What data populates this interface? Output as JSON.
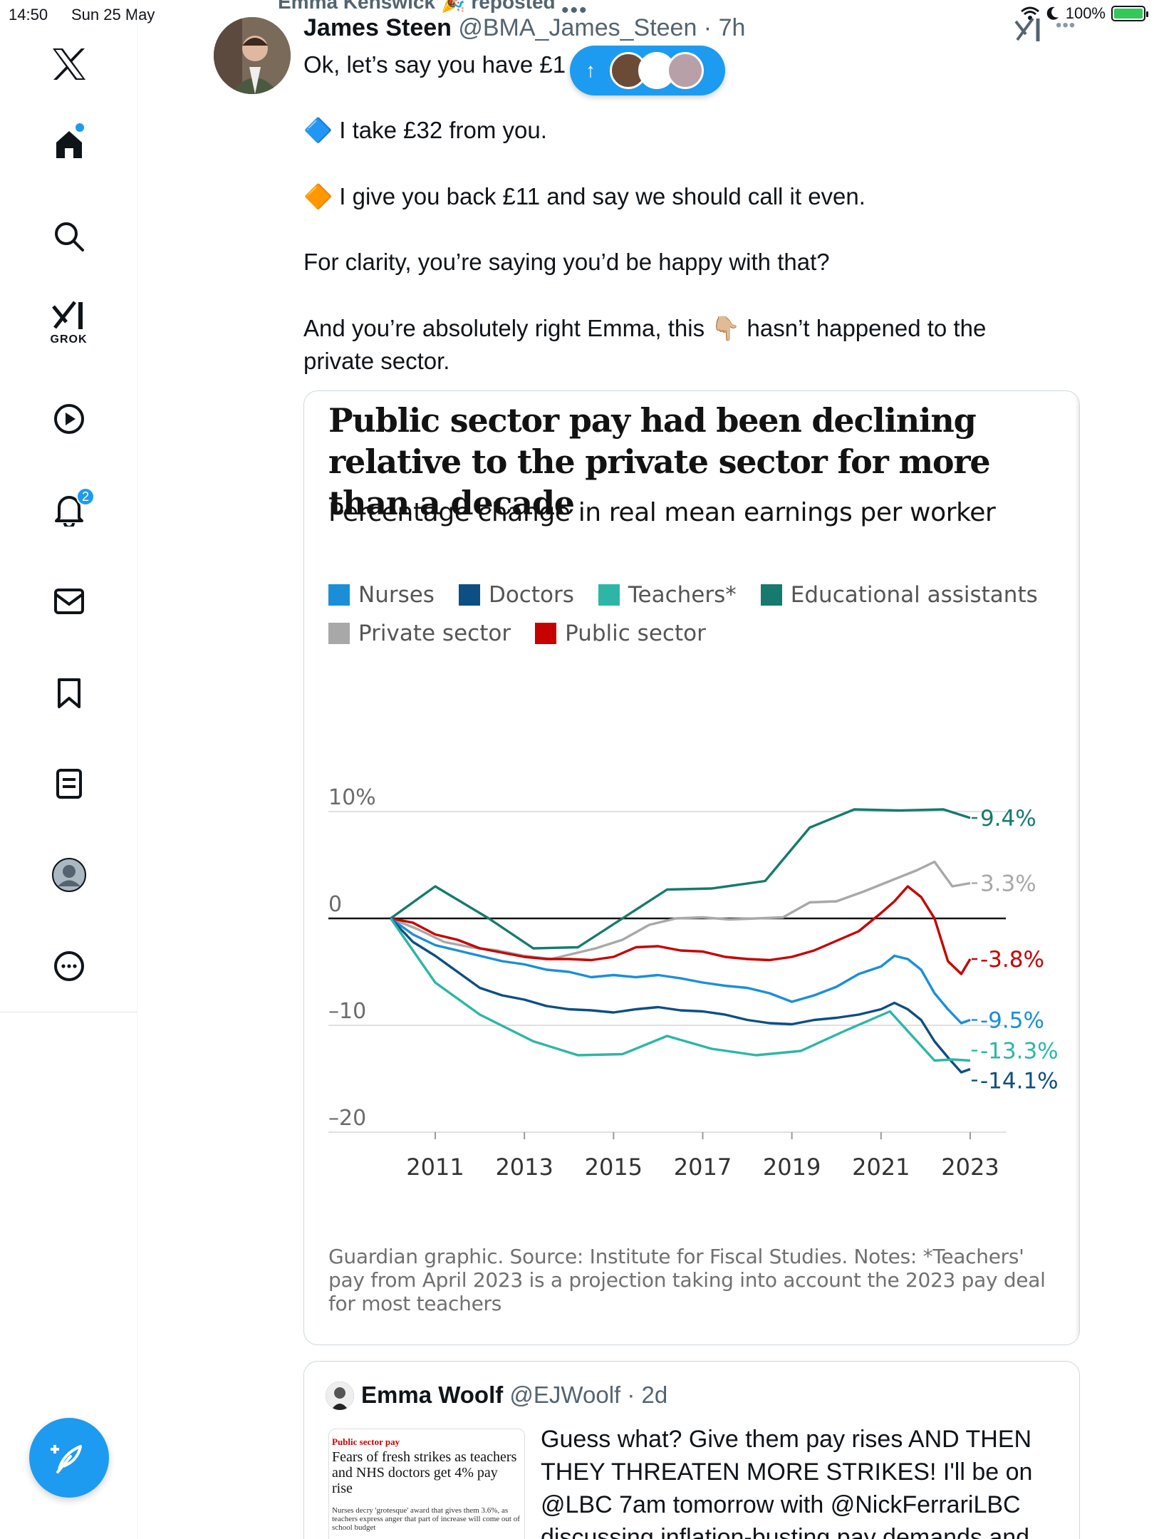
{
  "status": {
    "time": "14:50",
    "date": "Sun 25 May",
    "battery": "100%"
  },
  "sidebar": {
    "notification_count": "2",
    "grok_label": "GROK"
  },
  "tweet": {
    "repost_line": "Emma Kenswick 🎉 reposted",
    "author_name": "James Steen",
    "author_meta": "@BMA_James_Steen · 7h",
    "line1": "Ok, let’s say you have £1",
    "line2": "🔷 I take £32 from you.",
    "line3": "🔶 I give you back £11 and say we should call it even.",
    "line4": "For clarity, you’re saying you’d be happy with that?",
    "line5": "And you’re absolutely right Emma, this 👇🏼 hasn’t happened to the private sector.",
    "pill_arrow": "↑"
  },
  "chart_data": {
    "type": "line",
    "title": "Public sector pay had been declining relative to the private sector for more than a decade",
    "subtitle": "Percentage change in real mean earnings per worker",
    "notes": "Guardian graphic. Source: Institute for Fiscal Studies. Notes: *Teachers' pay from April 2023 is a projection taking into account the 2023 pay deal for most teachers",
    "ylim": [
      -20,
      10
    ],
    "xlim": [
      2009.5,
      2023.2
    ],
    "y_ticks": [
      {
        "v": 10,
        "label": "10%"
      },
      {
        "v": 0,
        "label": "0"
      },
      {
        "v": -10,
        "label": "–10"
      },
      {
        "v": -20,
        "label": "–20"
      }
    ],
    "x_ticks": [
      "2011",
      "2013",
      "2015",
      "2017",
      "2019",
      "2021",
      "2023"
    ],
    "x_tick_values": [
      2011,
      2013,
      2015,
      2017,
      2019,
      2021,
      2023
    ],
    "legend": [
      {
        "name": "Nurses",
        "color": "#1a8fd8"
      },
      {
        "name": "Doctors",
        "color": "#0d4f82"
      },
      {
        "name": "Teachers*",
        "color": "#2db6a6"
      },
      {
        "name": "Educational assistants",
        "color": "#167a6e"
      },
      {
        "name": "Private sector",
        "color": "#a8a8a8"
      },
      {
        "name": "Public sector",
        "color": "#c70000"
      }
    ],
    "series": [
      {
        "name": "Educational assistants",
        "color": "#167a6e",
        "end_label": "9.4%",
        "x": [
          2010.0,
          2011.0,
          2012.2,
          2013.2,
          2014.2,
          2015.2,
          2016.2,
          2017.2,
          2018.4,
          2019.4,
          2020.4,
          2021.4,
          2022.4,
          2023.0
        ],
        "y": [
          0.0,
          3.0,
          0.0,
          -2.8,
          -2.7,
          0.0,
          2.7,
          2.8,
          3.5,
          8.5,
          10.2,
          10.1,
          10.2,
          9.4
        ]
      },
      {
        "name": "Private sector",
        "color": "#a8a8a8",
        "end_label": "3.3%",
        "x": [
          2010.0,
          2010.6,
          2011.2,
          2011.8,
          2012.4,
          2013.0,
          2013.6,
          2014.0,
          2014.6,
          2015.2,
          2015.8,
          2016.4,
          2017.0,
          2017.6,
          2018.2,
          2018.8,
          2019.4,
          2020.0,
          2020.6,
          2021.2,
          2021.8,
          2022.2,
          2022.6,
          2023.0
        ],
        "y": [
          0.0,
          -1.0,
          -2.2,
          -2.7,
          -3.0,
          -3.5,
          -3.8,
          -3.4,
          -2.8,
          -2.0,
          -0.6,
          0.0,
          0.1,
          -0.1,
          0.0,
          0.1,
          1.5,
          1.6,
          2.5,
          3.5,
          4.5,
          5.3,
          3.0,
          3.3
        ]
      },
      {
        "name": "Public sector",
        "color": "#c70000",
        "end_label": "-3.8%",
        "x": [
          2010.0,
          2010.5,
          2011.0,
          2011.5,
          2012.0,
          2012.5,
          2013.0,
          2013.5,
          2014.0,
          2014.5,
          2015.0,
          2015.5,
          2016.0,
          2016.5,
          2017.0,
          2017.5,
          2018.0,
          2018.5,
          2019.0,
          2019.5,
          2020.0,
          2020.5,
          2021.0,
          2021.3,
          2021.6,
          2021.9,
          2022.2,
          2022.5,
          2022.8,
          2023.0
        ],
        "y": [
          0.0,
          -0.4,
          -1.5,
          -2.0,
          -2.8,
          -3.2,
          -3.6,
          -3.8,
          -3.8,
          -3.9,
          -3.6,
          -2.7,
          -2.6,
          -3.0,
          -3.1,
          -3.6,
          -3.8,
          -3.9,
          -3.6,
          -3.0,
          -2.1,
          -1.2,
          0.5,
          1.6,
          3.0,
          2.0,
          0.0,
          -4.0,
          -5.2,
          -3.8
        ]
      },
      {
        "name": "Nurses",
        "color": "#1a8fd8",
        "end_label": "-9.5%",
        "x": [
          2010.0,
          2010.5,
          2011.0,
          2011.5,
          2012.0,
          2012.5,
          2013.0,
          2013.5,
          2014.0,
          2014.5,
          2015.0,
          2015.5,
          2016.0,
          2016.5,
          2017.0,
          2017.5,
          2018.0,
          2018.5,
          2019.0,
          2019.5,
          2020.0,
          2020.5,
          2021.0,
          2021.3,
          2021.6,
          2021.9,
          2022.2,
          2022.5,
          2022.8,
          2023.0
        ],
        "y": [
          0.0,
          -1.5,
          -2.5,
          -3.0,
          -3.5,
          -4.0,
          -4.3,
          -4.8,
          -5.0,
          -5.5,
          -5.3,
          -5.5,
          -5.3,
          -5.6,
          -6.0,
          -6.3,
          -6.5,
          -7.0,
          -7.8,
          -7.2,
          -6.4,
          -5.2,
          -4.5,
          -3.5,
          -3.8,
          -4.8,
          -7.0,
          -8.5,
          -9.8,
          -9.5
        ]
      },
      {
        "name": "Doctors",
        "color": "#0d4f82",
        "end_label": "-14.1%",
        "x": [
          2010.0,
          2010.5,
          2011.0,
          2011.5,
          2012.0,
          2012.5,
          2013.0,
          2013.5,
          2014.0,
          2014.5,
          2015.0,
          2015.5,
          2016.0,
          2016.5,
          2017.0,
          2017.5,
          2018.0,
          2018.5,
          2019.0,
          2019.5,
          2020.0,
          2020.5,
          2021.0,
          2021.3,
          2021.6,
          2021.9,
          2022.2,
          2022.5,
          2022.8,
          2023.0
        ],
        "y": [
          0.0,
          -2.2,
          -3.5,
          -5.0,
          -6.5,
          -7.2,
          -7.6,
          -8.2,
          -8.5,
          -8.6,
          -8.8,
          -8.5,
          -8.3,
          -8.6,
          -8.7,
          -9.0,
          -9.5,
          -9.8,
          -9.9,
          -9.5,
          -9.3,
          -9.0,
          -8.5,
          -7.9,
          -8.5,
          -9.5,
          -11.5,
          -13.0,
          -14.4,
          -14.1
        ]
      },
      {
        "name": "Teachers*",
        "color": "#2db6a6",
        "end_label": "-13.3%",
        "x": [
          2010.0,
          2011.0,
          2012.0,
          2013.2,
          2014.2,
          2015.2,
          2016.2,
          2017.2,
          2018.2,
          2019.2,
          2020.2,
          2021.2,
          2022.2,
          2022.6,
          2023.0
        ],
        "y": [
          0.0,
          -6.0,
          -9.0,
          -11.5,
          -12.8,
          -12.7,
          -11.0,
          -12.2,
          -12.8,
          -12.4,
          -10.5,
          -8.7,
          -13.3,
          -13.2,
          -13.3
        ]
      }
    ]
  },
  "quote": {
    "author_name": "Emma Woolf",
    "author_meta": "@EJWoolf · 2d",
    "thumb_kicker": "Public sector pay",
    "thumb_headline": "Fears of fresh strikes as teachers and NHS doctors get 4% pay rise",
    "thumb_standfirst": "Nurses decry 'grotesque' award that gives them 3.6%, as teachers express anger that part of increase will come out of school budget",
    "text": "Guess what? Give them pay rises AND THEN THEY THREATEN MORE STRIKES! I'll be on @LBC 7am tomorrow with @NickFerrariLBC discussing inflation-busting pay demands and"
  }
}
